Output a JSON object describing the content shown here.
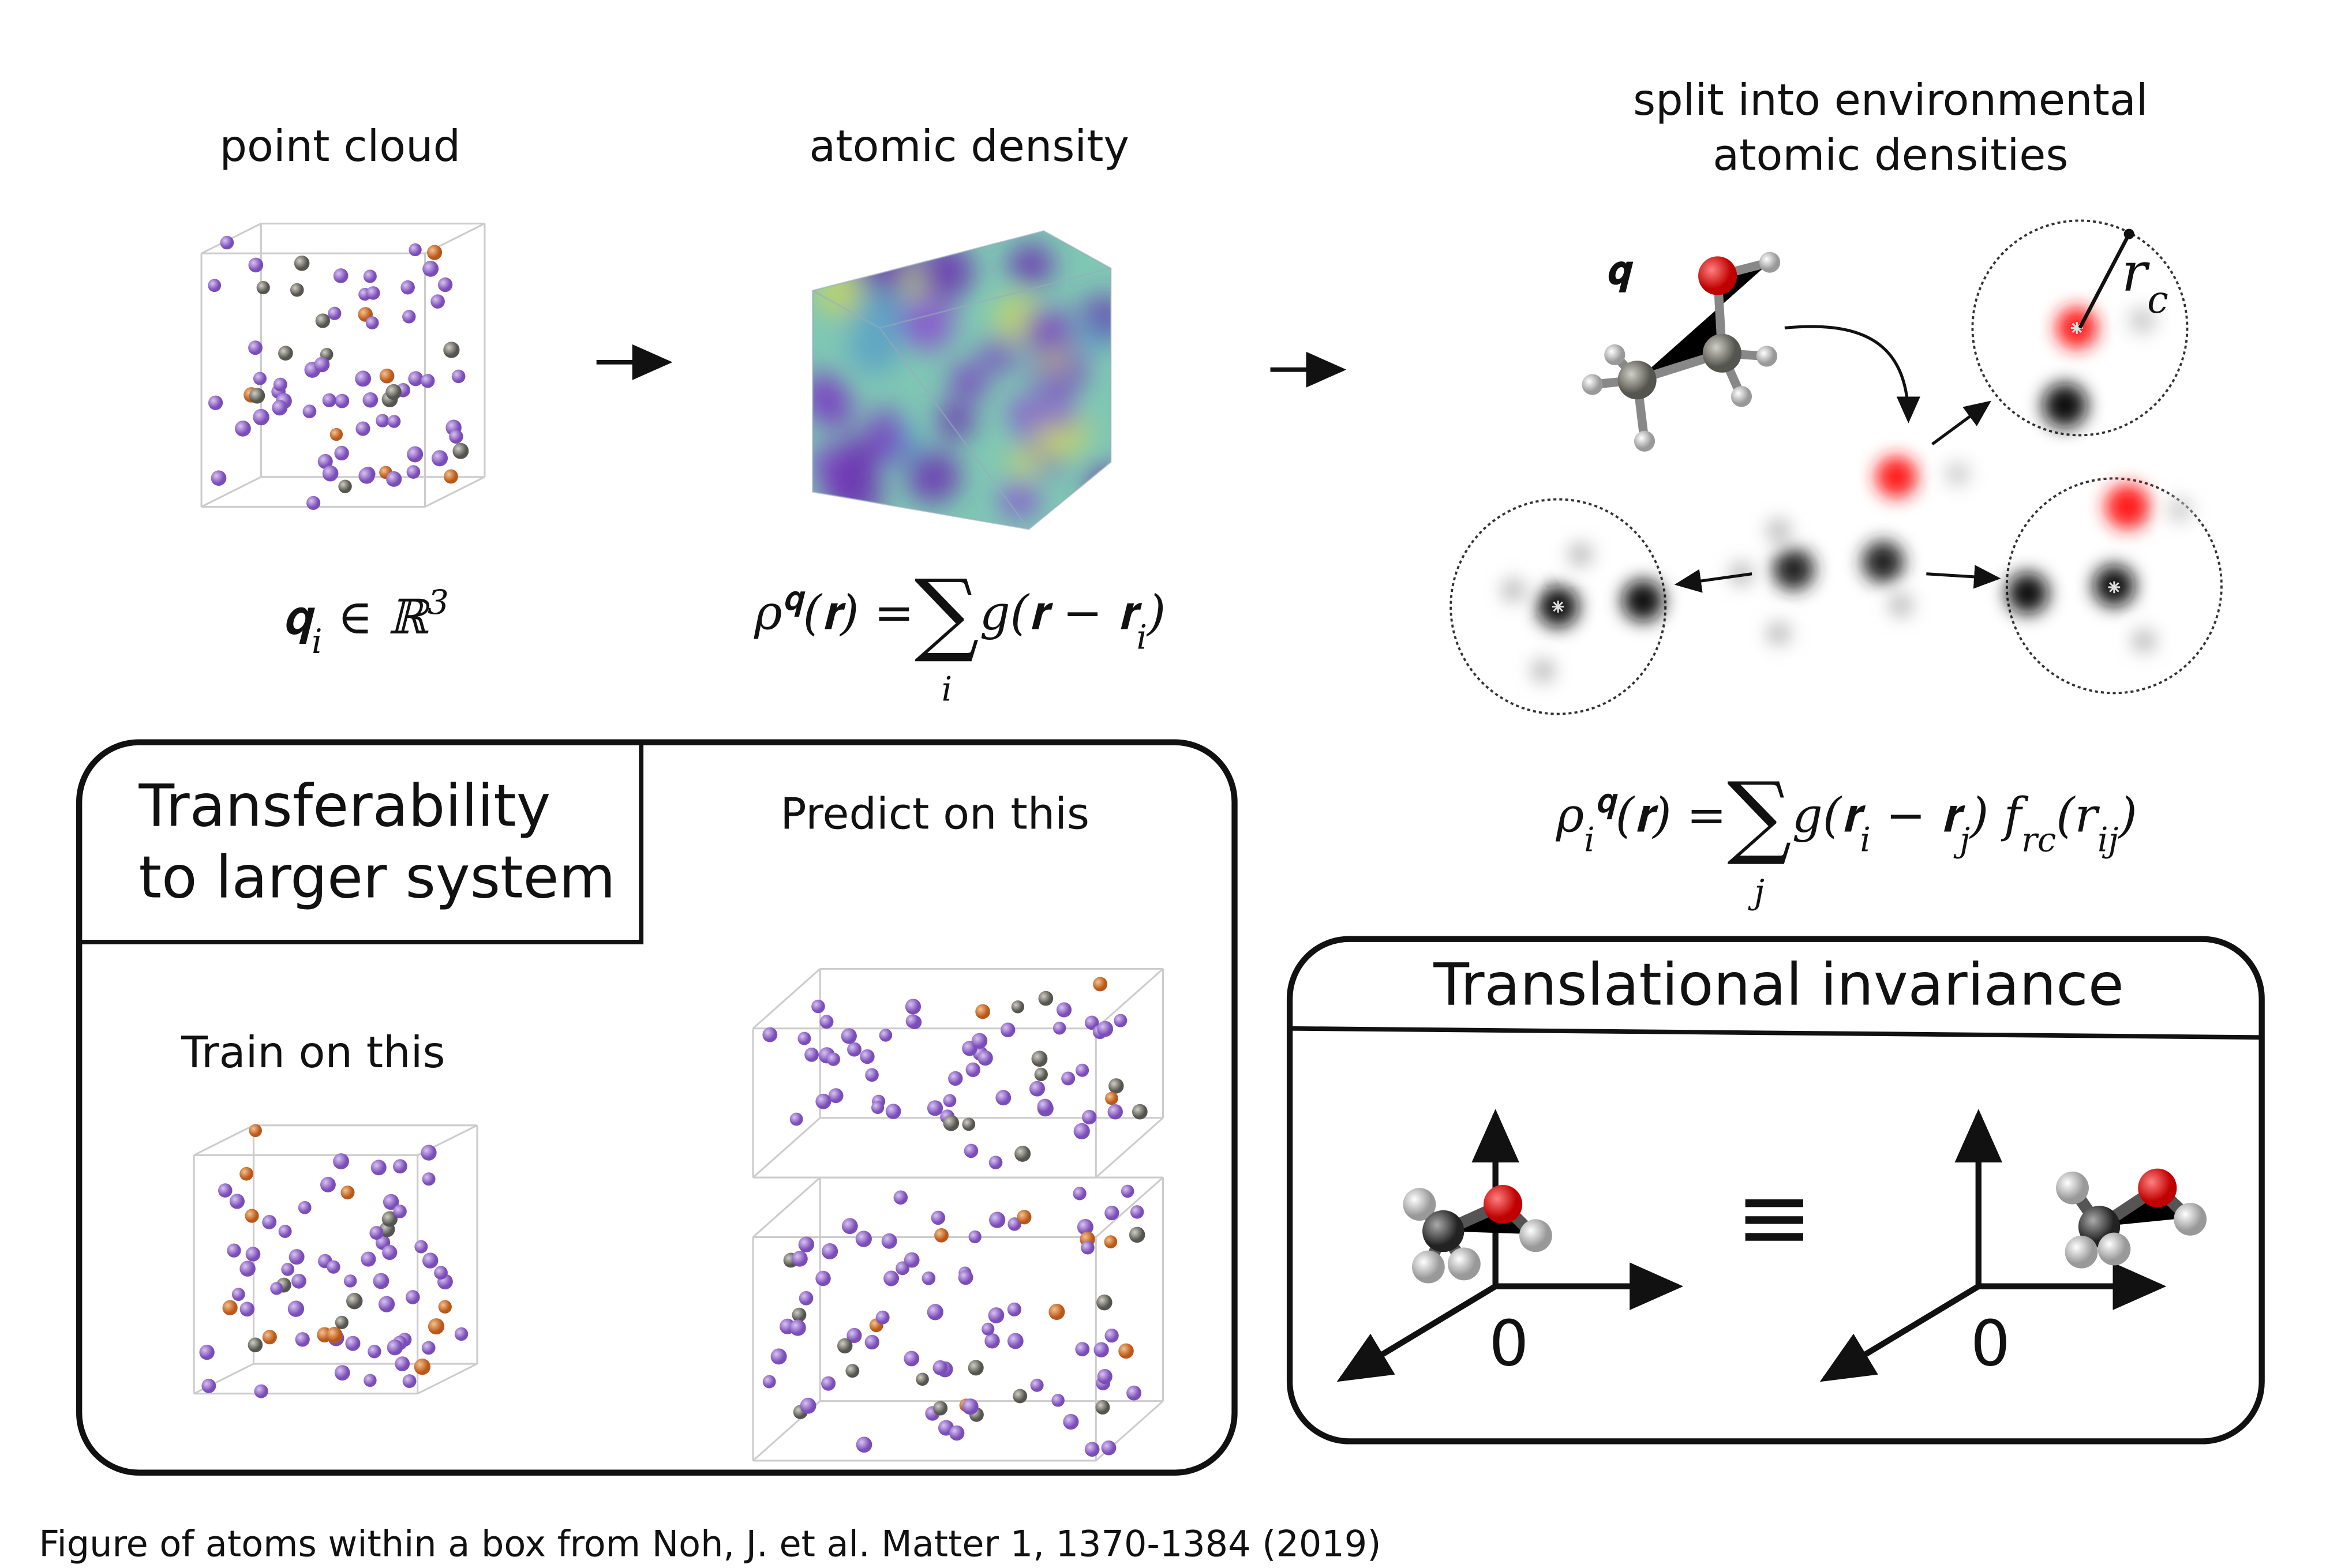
{
  "panels": {
    "point_cloud": {
      "title": "point cloud",
      "formula": {
        "left": [
          {
            "text": "𝐪"
          },
          {
            "text": "i",
            "style": "sub"
          },
          {
            "text": " ∈ ℝ"
          },
          {
            "text": "3",
            "style": "super"
          }
        ]
      }
    },
    "atomic_density": {
      "title": "atomic density",
      "formula": {
        "left": [
          {
            "text": "ρ"
          },
          {
            "text": "𝐪",
            "style": "super"
          },
          {
            "text": "(𝐫) ="
          }
        ],
        "sum": "∑",
        "index": "i",
        "right": [
          {
            "text": "g(𝐫 − 𝐫"
          },
          {
            "text": "i",
            "style": "sub"
          },
          {
            "text": ")"
          }
        ]
      }
    },
    "environments": {
      "title": [
        "split into environmental",
        "atomic densities"
      ],
      "molecule_label": "𝐪",
      "cutoff_label": [
        {
          "text": "r"
        },
        {
          "text": "c",
          "style": "sub"
        }
      ],
      "formula": {
        "left": [
          {
            "text": "ρ"
          },
          {
            "text": "i",
            "style": "sub"
          },
          {
            "text": "𝐪",
            "style": "super"
          },
          {
            "text": "(𝐫) ="
          }
        ],
        "sum": "∑",
        "index": "j",
        "right": [
          {
            "text": "g(𝐫"
          },
          {
            "text": "i",
            "style": "sub"
          },
          {
            "text": " − 𝐫"
          },
          {
            "text": "j",
            "style": "sub"
          },
          {
            "text": ") f"
          },
          {
            "text": "r",
            "style": "sub"
          },
          {
            "text": "c",
            "style": "sub"
          },
          {
            "text": "(r"
          },
          {
            "text": "ij",
            "style": "sub"
          },
          {
            "text": ")"
          }
        ]
      }
    },
    "transferability": {
      "title": [
        "Transferability",
        "to larger system"
      ],
      "train": "Train on this",
      "predict": "Predict on this"
    },
    "translational": {
      "title": "Translational invariance",
      "origin_left": "0",
      "equivalence": "≡",
      "origin_right": "0"
    }
  },
  "caption": "Figure of atoms within a box from Noh, J. et al. Matter 1, 1370-1384 (2019)"
}
